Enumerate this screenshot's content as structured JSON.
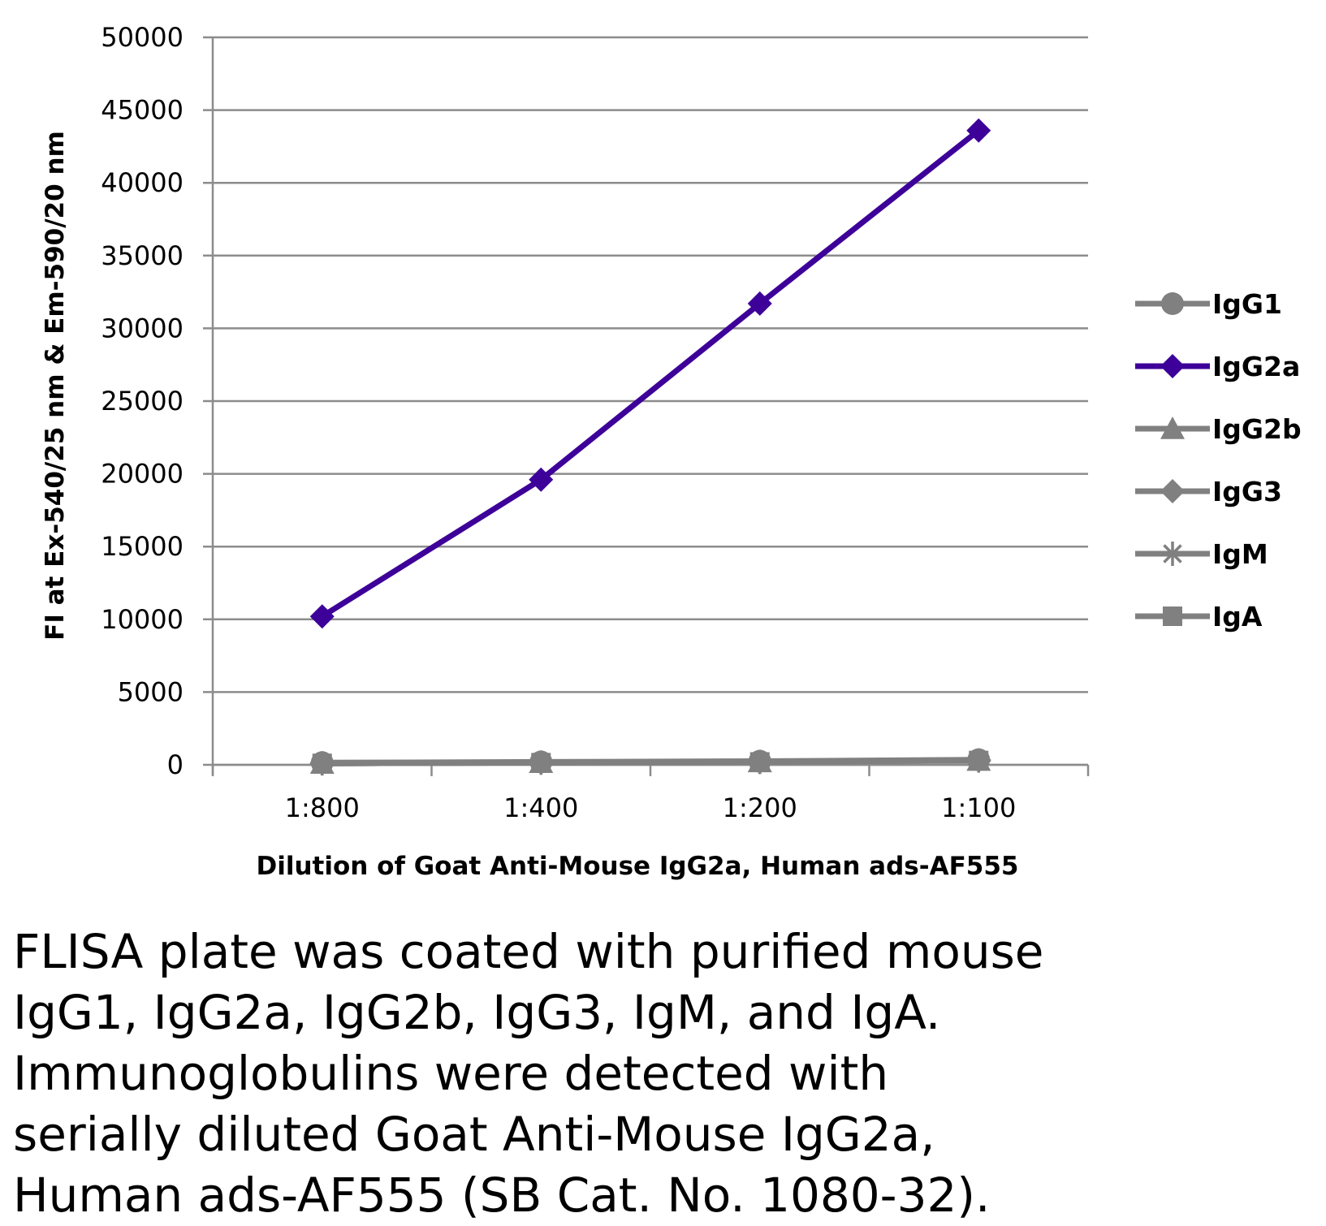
{
  "chart_data": {
    "type": "line",
    "categories": [
      "1:800",
      "1:400",
      "1:200",
      "1:100"
    ],
    "series": [
      {
        "name": "IgG1",
        "values": [
          150,
          200,
          250,
          350
        ],
        "color": "#808080",
        "marker": "circle"
      },
      {
        "name": "IgG2a",
        "values": [
          10200,
          19600,
          31700,
          43600
        ],
        "color": "#3d0099",
        "marker": "diamond"
      },
      {
        "name": "IgG2b",
        "values": [
          100,
          150,
          200,
          300
        ],
        "color": "#808080",
        "marker": "triangle"
      },
      {
        "name": "IgG3",
        "values": [
          100,
          150,
          200,
          300
        ],
        "color": "#808080",
        "marker": "diamond"
      },
      {
        "name": "IgM",
        "values": [
          100,
          150,
          200,
          300
        ],
        "color": "#808080",
        "marker": "star"
      },
      {
        "name": "IgA",
        "values": [
          100,
          150,
          200,
          300
        ],
        "color": "#808080",
        "marker": "square"
      }
    ],
    "xlabel": "Dilution of Goat Anti-Mouse IgG2a, Human ads-AF555",
    "ylabel": "FI at Ex-540/25 nm & Em-590/20 nm",
    "ylim": [
      0,
      50000
    ],
    "yticks": [
      "0",
      "5000",
      "10000",
      "15000",
      "20000",
      "25000",
      "30000",
      "35000",
      "40000",
      "45000",
      "50000"
    ],
    "grid": true,
    "legend_position": "right"
  },
  "caption": {
    "lines": [
      "FLISA plate was coated with purified mouse",
      "IgG1, IgG2a, IgG2b, IgG3, IgM, and IgA.",
      "Immunoglobulins were detected with",
      "serially diluted Goat Anti-Mouse IgG2a,",
      "Human ads-AF555 (SB Cat. No. 1080-32)."
    ]
  }
}
